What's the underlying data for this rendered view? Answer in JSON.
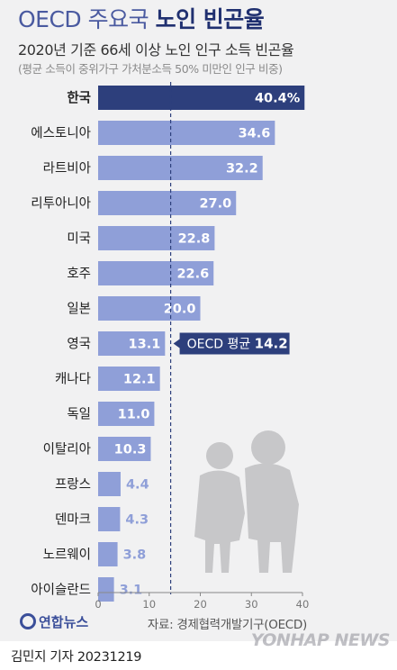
{
  "header": {
    "title_part1": "OECD 주요국",
    "title_part2": "노인 빈곤율",
    "subtitle": "2020년 기준 66세 이상 노인 인구 소득 빈곤율",
    "note": "(평균 소득이 중위가구 가처분소득 50% 미만인 인구 비중)"
  },
  "chart_data": {
    "type": "bar",
    "orientation": "horizontal",
    "title": "OECD 주요국 노인 빈곤율",
    "subtitle": "2020년 기준 66세 이상 노인 인구 소득 빈곤율",
    "categories": [
      "한국",
      "에스토니아",
      "라트비아",
      "리투아니아",
      "미국",
      "호주",
      "일본",
      "영국",
      "캐나다",
      "독일",
      "이탈리아",
      "프랑스",
      "덴마크",
      "노르웨이",
      "아이슬란드"
    ],
    "values": [
      40.4,
      34.6,
      32.2,
      27.0,
      22.8,
      22.6,
      20.0,
      13.1,
      12.1,
      11.0,
      10.3,
      4.4,
      4.3,
      3.8,
      3.1
    ],
    "value_labels": [
      "40.4%",
      "34.6",
      "32.2",
      "27.0",
      "22.8",
      "22.6",
      "20.0",
      "13.1",
      "12.1",
      "11.0",
      "10.3",
      "4.4",
      "4.3",
      "3.8",
      "3.1"
    ],
    "xlim": [
      0,
      40
    ],
    "xticks": [
      0,
      10,
      20,
      30,
      40
    ],
    "reference_line": {
      "label": "OECD 평균",
      "value": 14.2,
      "value_label": "14.2"
    },
    "highlight_category": "한국",
    "grid": false,
    "colors": {
      "highlight": "#2d3f7c",
      "bar": "#8f9fd8",
      "label_outside": "#8f9fd8",
      "reference": "#2d3f7c"
    }
  },
  "footer": {
    "source": "자료: 경제협력개발기구(OECD)",
    "byline": "김민지 기자  20231219",
    "watermark_left": "연합뉴스",
    "watermark_right": "YONHAP NEWS"
  }
}
